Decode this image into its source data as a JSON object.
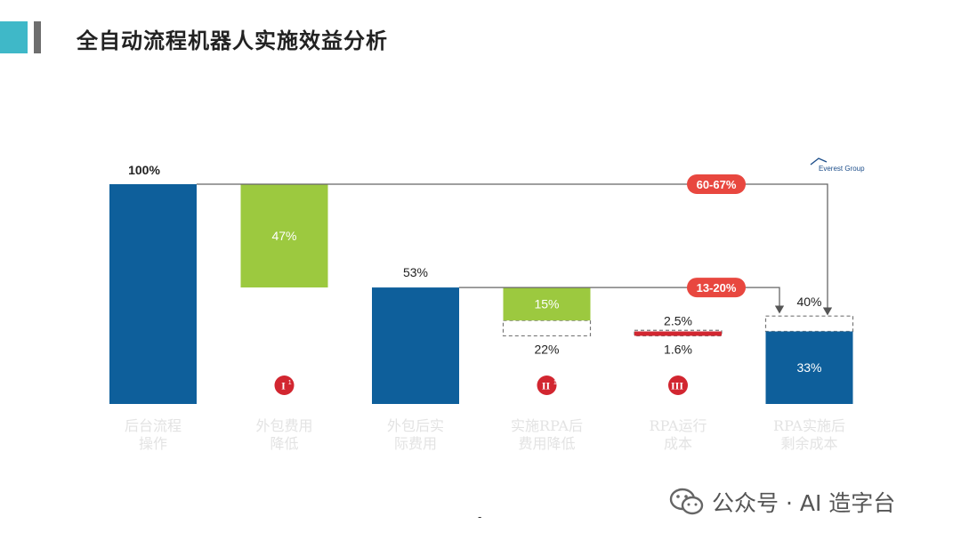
{
  "header": {
    "title": "全自动流程机器人实施效益分析"
  },
  "source": {
    "label": "Everest Group"
  },
  "chart_data": {
    "type": "bar",
    "subtype": "waterfall",
    "ylim": [
      0,
      100
    ],
    "categories": [
      [
        "后台流程",
        "操作"
      ],
      [
        "外包费用",
        "降低"
      ],
      [
        "外包后实",
        "际费用"
      ],
      [
        "实施RPA后",
        "费用降低"
      ],
      [
        "RPA运行",
        "成本"
      ],
      [
        "RPA实施后",
        "剩余成本"
      ]
    ],
    "bars": [
      {
        "kind": "total",
        "low": 0,
        "high": 100,
        "label": "100%",
        "color": "#0e5f9b"
      },
      {
        "kind": "decrease",
        "low": 53,
        "high": 100,
        "label": "47%",
        "color": "#9cc93f"
      },
      {
        "kind": "total",
        "low": 0,
        "high": 53,
        "label": "53%",
        "color": "#0e5f9b"
      },
      {
        "kind": "decrease",
        "low": 38,
        "high": 53,
        "label": "15%",
        "color": "#9cc93f",
        "dashed_low": 31,
        "dashed_label": "22%"
      },
      {
        "kind": "increase",
        "low": 31,
        "high": 33,
        "label": "1.6%",
        "color": "#d22630",
        "dashed_low": 31,
        "dashed_high": 33.5,
        "dashed_label": "2.5%"
      },
      {
        "kind": "total",
        "low": 0,
        "high": 33,
        "label": "33%",
        "color": "#0e5f9b",
        "dashed_low": 33,
        "dashed_high": 40,
        "dashed_label": "40%"
      }
    ],
    "markers": [
      {
        "bar": 1,
        "text": "I",
        "sup": "1"
      },
      {
        "bar": 3,
        "text": "II",
        "sup": "1"
      },
      {
        "bar": 4,
        "text": "III",
        "sup": "1"
      }
    ],
    "callouts": [
      {
        "text": "60-67%",
        "from_value": 100,
        "to_bar": 5,
        "to_value": 40
      },
      {
        "text": "13-20%",
        "from_value": 53,
        "to_bar": 5,
        "to_value": 40
      }
    ],
    "colors": {
      "total": "#0e5f9b",
      "decrease": "#9cc93f",
      "increase": "#d22630",
      "callout": "#e8473f",
      "category_text": "#e3e3e3"
    }
  },
  "watermark": {
    "text": "公众号 · AI 造字台"
  },
  "footer": {
    "mark": "-"
  }
}
